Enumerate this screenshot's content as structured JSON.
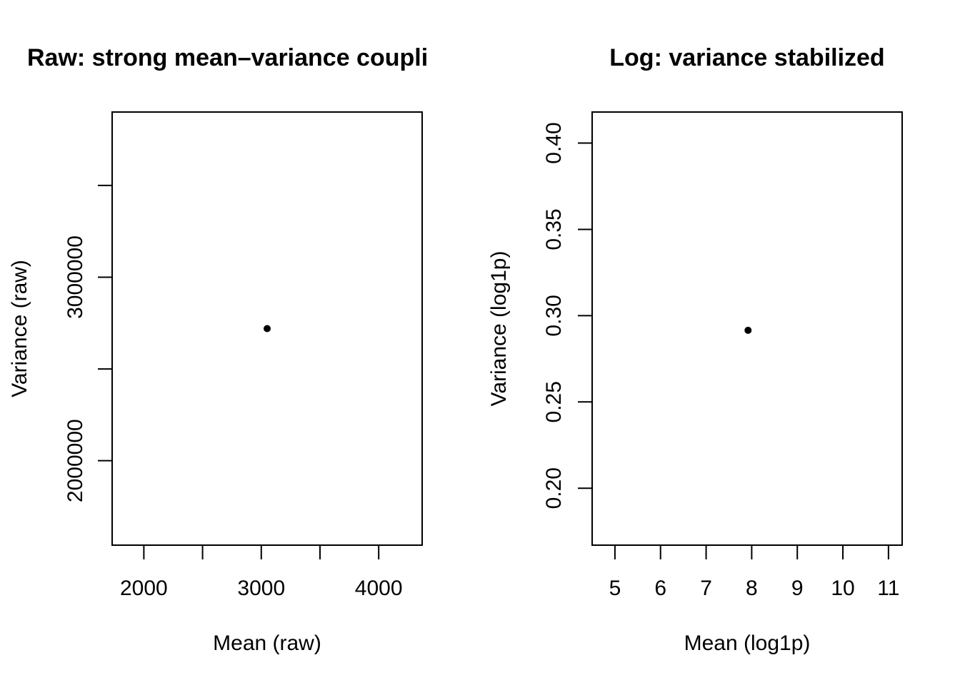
{
  "chart_data": [
    {
      "type": "scatter",
      "title": "Raw: strong mean–variance coupli",
      "xlabel": "Mean (raw)",
      "ylabel": "Variance (raw)",
      "xlim": [
        1730,
        4370
      ],
      "ylim": [
        1540000,
        3900000
      ],
      "xticks": [
        2000,
        2500,
        3000,
        3500,
        4000
      ],
      "xtick_labels": [
        "2000",
        "",
        "3000",
        "",
        "4000"
      ],
      "yticks": [
        2000000,
        2500000,
        3000000,
        3500000
      ],
      "ytick_labels": [
        "2000000",
        "",
        "3000000",
        ""
      ],
      "points": [
        {
          "x": 3050,
          "y": 2720000
        }
      ],
      "grid": false
    },
    {
      "type": "scatter",
      "title": "Log: variance stabilized",
      "xlabel": "Mean (log1p)",
      "ylabel": "Variance (log1p)",
      "xlim": [
        4.5,
        11.3
      ],
      "ylim": [
        0.167,
        0.418
      ],
      "xticks": [
        5,
        6,
        7,
        8,
        9,
        10,
        11
      ],
      "xtick_labels": [
        "5",
        "6",
        "7",
        "8",
        "9",
        "10",
        "11"
      ],
      "yticks": [
        0.2,
        0.25,
        0.3,
        0.35,
        0.4
      ],
      "ytick_labels": [
        "0.20",
        "0.25",
        "0.30",
        "0.35",
        "0.40"
      ],
      "points": [
        {
          "x": 7.92,
          "y": 0.2915
        }
      ],
      "grid": false
    }
  ]
}
